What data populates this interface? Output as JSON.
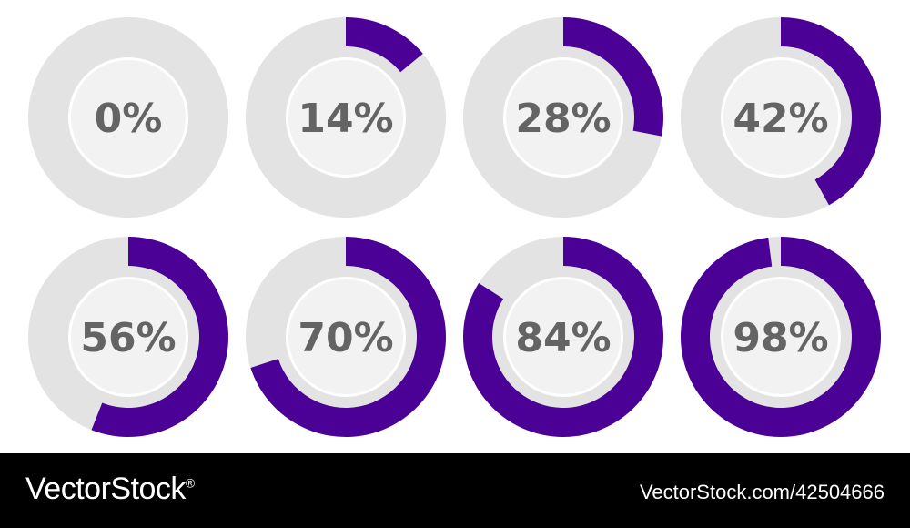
{
  "colors": {
    "accent": "#4b0096",
    "track": "#e3e3e3",
    "ring_gap": "#ffffff",
    "inner_disc": "#f2f2f2",
    "label": "#646464",
    "footer_background": "#000000",
    "footer_text": "#ffffff"
  },
  "progress_rings": [
    {
      "label": "0%",
      "value": 0
    },
    {
      "label": "14%",
      "value": 14
    },
    {
      "label": "28%",
      "value": 28
    },
    {
      "label": "42%",
      "value": 42
    },
    {
      "label": "56%",
      "value": 56
    },
    {
      "label": "70%",
      "value": 70
    },
    {
      "label": "84%",
      "value": 84
    },
    {
      "label": "98%",
      "value": 98
    }
  ],
  "footer": {
    "brand": "VectorStock",
    "brand_mark": "®",
    "image_ref": "VectorStock.com/42504666"
  }
}
